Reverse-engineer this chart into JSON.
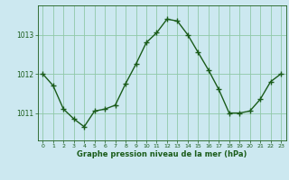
{
  "x": [
    0,
    1,
    2,
    3,
    4,
    5,
    6,
    7,
    8,
    9,
    10,
    11,
    12,
    13,
    14,
    15,
    16,
    17,
    18,
    19,
    20,
    21,
    22,
    23
  ],
  "y": [
    1012.0,
    1011.7,
    1011.1,
    1010.85,
    1010.65,
    1011.05,
    1011.1,
    1011.2,
    1011.75,
    1012.25,
    1012.8,
    1013.05,
    1013.4,
    1013.35,
    1013.0,
    1012.55,
    1012.1,
    1011.6,
    1011.0,
    1011.0,
    1011.05,
    1011.35,
    1011.8,
    1012.0
  ],
  "line_color": "#1a5c1a",
  "marker": "+",
  "marker_color": "#1a5c1a",
  "bg_color": "#cce8f0",
  "grid_color": "#90c8a8",
  "xlabel": "Graphe pression niveau de la mer (hPa)",
  "xlabel_color": "#1a5c1a",
  "tick_color": "#1a5c1a",
  "yticks": [
    1011,
    1012,
    1013
  ],
  "ylim": [
    1010.3,
    1013.75
  ],
  "xlim": [
    -0.5,
    23.5
  ],
  "xticks": [
    0,
    1,
    2,
    3,
    4,
    5,
    6,
    7,
    8,
    9,
    10,
    11,
    12,
    13,
    14,
    15,
    16,
    17,
    18,
    19,
    20,
    21,
    22,
    23
  ]
}
